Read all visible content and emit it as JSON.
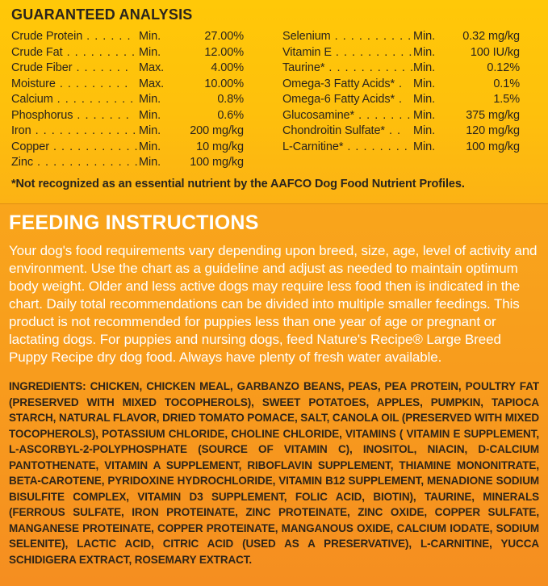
{
  "ga": {
    "title": "GUARANTEED ANALYSIS",
    "left": [
      {
        "label": "Crude Protein",
        "dots": ". . . . . .",
        "basis": "Min.",
        "value": "27.00%"
      },
      {
        "label": "Crude Fat",
        "dots": ". . . . . . . . .",
        "basis": "Min.",
        "value": "12.00%"
      },
      {
        "label": "Crude Fiber",
        "dots": ". . . . . . .",
        "basis": "Max.",
        "value": "4.00%"
      },
      {
        "label": "Moisture",
        "dots": ". . . . . . . . .",
        "basis": "Max.",
        "value": "10.00%"
      },
      {
        "label": "Calcium",
        "dots": ". . . . . . . . . .",
        "basis": "Min.",
        "value": "0.8%"
      },
      {
        "label": "Phosphorus",
        "dots": ". . . . . . .",
        "basis": "Min.",
        "value": "0.6%"
      },
      {
        "label": "Iron",
        "dots": ". . . . . . . . . . . . .",
        "basis": "Min.",
        "value": "200 mg/kg"
      },
      {
        "label": "Copper",
        "dots": ". . . . . . . . . . .",
        "basis": "Min.",
        "value": "10 mg/kg"
      },
      {
        "label": "Zinc",
        "dots": ". . . . . . . . . . . . .",
        "basis": "Min.",
        "value": "100 mg/kg"
      }
    ],
    "right": [
      {
        "label": "Selenium",
        "dots": ". . . . . . . . . .",
        "basis": "Min.",
        "value": "0.32 mg/kg"
      },
      {
        "label": "Vitamin E",
        "dots": ". . . . . . . . . .",
        "basis": "Min.",
        "value": "100 IU/kg"
      },
      {
        "label": "Taurine*",
        "dots": ". . . . . . . . . . .",
        "basis": "Min.",
        "value": "0.12%"
      },
      {
        "label": "Omega-3 Fatty Acids*",
        "dots": ".",
        "basis": "Min.",
        "value": "0.1%"
      },
      {
        "label": "Omega-6 Fatty Acids*",
        "dots": ".",
        "basis": "Min.",
        "value": "1.5%"
      },
      {
        "label": "Glucosamine*",
        "dots": ". . . . . . .",
        "basis": "Min.",
        "value": "375 mg/kg"
      },
      {
        "label": "Chondroitin Sulfate*",
        "dots": ". .",
        "basis": "Min.",
        "value": "120 mg/kg"
      },
      {
        "label": "L-Carnitine*",
        "dots": ". . . . . . . . .",
        "basis": "Min.",
        "value": "100 mg/kg"
      }
    ],
    "footnote": "*Not recognized as an essential nutrient by the AAFCO Dog Food Nutrient Profiles."
  },
  "feeding": {
    "title": "FEEDING INSTRUCTIONS",
    "body": "Your dog's food requirements vary depending upon breed, size, age, level of activity and environment. Use the chart as a guideline and adjust as needed to maintain optimum body weight. Older and less active dogs may require less food then is indicated in the chart. Daily total recommendations can be divided into multiple smaller feedings. This product is not recommended for puppies less than one year of age or pregnant or lactating dogs. For puppies and nursing dogs, feed Nature's Recipe® Large Breed Puppy Recipe dry dog food. Always have plenty of fresh water available."
  },
  "ingredients": {
    "label": "INGREDIENTS:",
    "body": " CHICKEN, CHICKEN MEAL, GARBANZO BEANS, PEAS, PEA PROTEIN, POULTRY FAT (PRESERVED WITH MIXED TOCOPHEROLS), SWEET POTATOES, APPLES, PUMPKIN, TAPIOCA STARCH, NATURAL FLAVOR, DRIED TOMATO POMACE, SALT, CANOLA OIL (PRESERVED WITH MIXED TOCOPHEROLS), POTASSIUM CHLORIDE, CHOLINE CHLORIDE, VITAMINS ( VITAMIN E SUPPLEMENT, L-ASCORBYL-2-POLYPHOSPHATE (SOURCE OF VITAMIN C), INOSITOL, NIACIN, D-CALCIUM PANTOTHENATE, VITAMIN A SUPPLEMENT, RIBOFLAVIN SUPPLEMENT, THIAMINE MONONITRATE, BETA-CAROTENE, PYRIDOXINE HYDROCHLORIDE, VITAMIN B12 SUPPLEMENT, MENADIONE SODIUM BISULFITE COMPLEX, VITAMIN D3 SUPPLEMENT, FOLIC ACID, BIOTIN), TAURINE, MINERALS (FERROUS SULFATE, IRON PROTEINATE, ZINC PROTEINATE, ZINC OXIDE, COPPER SULFATE, MANGANESE PROTEINATE, COPPER PROTEINATE, MANGANOUS OXIDE, CALCIUM IODATE, SODIUM SELENITE), LACTIC ACID, CITRIC ACID (USED AS A PRESERVATIVE), L-CARNITINE, YUCCA SCHIDIGERA EXTRACT, ROSEMARY EXTRACT."
  },
  "colors": {
    "bg_top": "#ffc808",
    "bg_bottom": "#f58e20",
    "dark_text": "#2a241d",
    "white_text": "#ffffff"
  }
}
